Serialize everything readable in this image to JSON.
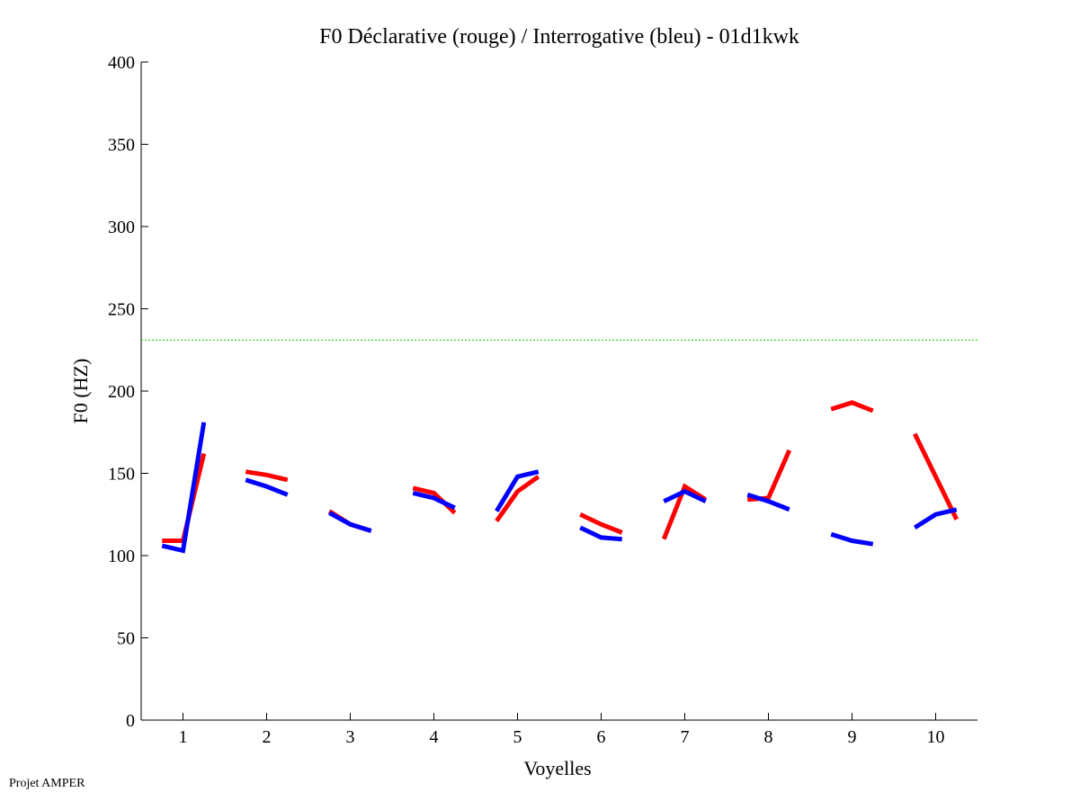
{
  "chart_data": {
    "type": "line",
    "title": "F0 Déclarative (rouge) / Interrogative (bleu) - 01d1kwk",
    "xlabel": "Voyelles",
    "ylabel": "F0 (HZ)",
    "xlim": [
      0.5,
      10.5
    ],
    "ylim": [
      0,
      400
    ],
    "xticks": [
      1,
      2,
      3,
      4,
      5,
      6,
      7,
      8,
      9,
      10
    ],
    "yticks": [
      0,
      50,
      100,
      150,
      200,
      250,
      300,
      350,
      400
    ],
    "grid": false,
    "reference_line": {
      "y": 231,
      "color": "#00cc00",
      "style": "dotted"
    },
    "point_offsets": [
      -0.25,
      0,
      0.25
    ],
    "series": [
      {
        "name": "Déclarative (rouge)",
        "color": "#ff0000",
        "segments": [
          [
            109,
            109,
            162
          ],
          [
            151,
            149,
            146
          ],
          [
            127,
            119,
            115
          ],
          [
            141,
            138,
            126
          ],
          [
            121,
            139,
            148
          ],
          [
            125,
            119,
            114
          ],
          [
            110,
            142,
            134
          ],
          [
            134,
            135,
            164
          ],
          [
            189,
            193,
            188
          ],
          [
            174,
            148,
            122
          ]
        ]
      },
      {
        "name": "Interrogative (bleu)",
        "color": "#0000ff",
        "segments": [
          [
            106,
            103,
            181
          ],
          [
            146,
            142,
            137
          ],
          [
            126,
            119,
            115
          ],
          [
            138,
            135,
            129
          ],
          [
            127,
            148,
            151
          ],
          [
            117,
            111,
            110
          ],
          [
            133,
            139,
            133
          ],
          [
            137,
            133,
            128
          ],
          [
            113,
            109,
            107
          ],
          [
            117,
            125,
            128
          ]
        ]
      }
    ]
  },
  "footer": {
    "credit": "Projet AMPER"
  }
}
